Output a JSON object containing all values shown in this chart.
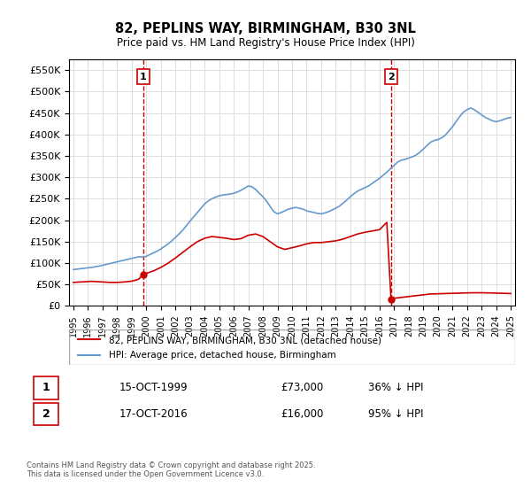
{
  "title": "82, PEPLINS WAY, BIRMINGHAM, B30 3NL",
  "subtitle": "Price paid vs. HM Land Registry's House Price Index (HPI)",
  "legend_property": "82, PEPLINS WAY, BIRMINGHAM, B30 3NL (detached house)",
  "legend_hpi": "HPI: Average price, detached house, Birmingham",
  "footnote": "Contains HM Land Registry data © Crown copyright and database right 2025.\nThis data is licensed under the Open Government Licence v3.0.",
  "sale1_label": "1",
  "sale1_date": "15-OCT-1999",
  "sale1_price": "£73,000",
  "sale1_hpi": "36% ↓ HPI",
  "sale2_label": "2",
  "sale2_date": "17-OCT-2016",
  "sale2_price": "£16,000",
  "sale2_hpi": "95% ↓ HPI",
  "property_color": "#cc0000",
  "hpi_color": "#6699cc",
  "vline_color": "#cc0000",
  "marker_box_color": "#cc0000",
  "background_color": "#ffffff",
  "grid_color": "#dddddd",
  "ylim": [
    0,
    575000
  ],
  "yticks": [
    0,
    50000,
    100000,
    150000,
    200000,
    250000,
    300000,
    350000,
    400000,
    450000,
    500000,
    550000
  ],
  "sale1_year": 1999.79,
  "sale2_year": 2016.79,
  "hpi_years": [
    1995,
    1995.25,
    1995.5,
    1995.75,
    1996,
    1996.25,
    1996.5,
    1996.75,
    1997,
    1997.25,
    1997.5,
    1997.75,
    1998,
    1998.25,
    1998.5,
    1998.75,
    1999,
    1999.25,
    1999.5,
    1999.75,
    2000,
    2000.25,
    2000.5,
    2000.75,
    2001,
    2001.25,
    2001.5,
    2001.75,
    2002,
    2002.25,
    2002.5,
    2002.75,
    2003,
    2003.25,
    2003.5,
    2003.75,
    2004,
    2004.25,
    2004.5,
    2004.75,
    2005,
    2005.25,
    2005.5,
    2005.75,
    2006,
    2006.25,
    2006.5,
    2006.75,
    2007,
    2007.25,
    2007.5,
    2007.75,
    2008,
    2008.25,
    2008.5,
    2008.75,
    2009,
    2009.25,
    2009.5,
    2009.75,
    2010,
    2010.25,
    2010.5,
    2010.75,
    2011,
    2011.25,
    2011.5,
    2011.75,
    2012,
    2012.25,
    2012.5,
    2012.75,
    2013,
    2013.25,
    2013.5,
    2013.75,
    2014,
    2014.25,
    2014.5,
    2014.75,
    2015,
    2015.25,
    2015.5,
    2015.75,
    2016,
    2016.25,
    2016.5,
    2016.75,
    2017,
    2017.25,
    2017.5,
    2017.75,
    2018,
    2018.25,
    2018.5,
    2018.75,
    2019,
    2019.25,
    2019.5,
    2019.75,
    2020,
    2020.25,
    2020.5,
    2020.75,
    2021,
    2021.25,
    2021.5,
    2021.75,
    2022,
    2022.25,
    2022.5,
    2022.75,
    2023,
    2023.25,
    2023.5,
    2023.75,
    2024,
    2024.25,
    2024.5,
    2024.75,
    2025
  ],
  "hpi_values": [
    85000,
    86000,
    87000,
    88000,
    89000,
    90000,
    91500,
    93000,
    95000,
    97000,
    99000,
    101000,
    103000,
    105000,
    107000,
    109000,
    111000,
    113000,
    115000,
    114000,
    116000,
    120000,
    124000,
    128000,
    133000,
    139000,
    145000,
    152000,
    160000,
    168000,
    177000,
    187000,
    198000,
    208000,
    218000,
    228000,
    238000,
    245000,
    250000,
    254000,
    257000,
    259000,
    260000,
    261000,
    263000,
    266000,
    270000,
    275000,
    280000,
    278000,
    272000,
    263000,
    255000,
    245000,
    232000,
    220000,
    215000,
    218000,
    222000,
    226000,
    228000,
    230000,
    228000,
    226000,
    222000,
    220000,
    218000,
    216000,
    215000,
    217000,
    220000,
    224000,
    228000,
    233000,
    240000,
    247000,
    255000,
    262000,
    268000,
    272000,
    276000,
    280000,
    286000,
    292000,
    298000,
    305000,
    312000,
    320000,
    328000,
    336000,
    340000,
    342000,
    345000,
    348000,
    352000,
    358000,
    366000,
    374000,
    382000,
    386000,
    388000,
    392000,
    398000,
    408000,
    418000,
    430000,
    442000,
    452000,
    458000,
    462000,
    458000,
    452000,
    446000,
    440000,
    436000,
    432000,
    430000,
    432000,
    435000,
    438000,
    440000
  ],
  "prop_years": [
    1995,
    1995.25,
    1995.5,
    1995.75,
    1996,
    1996.25,
    1996.5,
    1996.75,
    1997,
    1997.25,
    1997.5,
    1997.75,
    1998,
    1998.25,
    1998.5,
    1998.75,
    1999,
    1999.25,
    1999.5,
    1999.75,
    2000,
    2000.5,
    2001,
    2001.5,
    2002,
    2002.5,
    2003,
    2003.5,
    2004,
    2004.5,
    2005,
    2005.5,
    2006,
    2006.5,
    2007,
    2007.5,
    2008,
    2008.5,
    2009,
    2009.5,
    2010,
    2010.5,
    2011,
    2011.5,
    2012,
    2012.5,
    2013,
    2013.5,
    2014,
    2014.5,
    2015,
    2015.5,
    2016,
    2016.5,
    2016.79,
    2017,
    2017.5,
    2018,
    2018.5,
    2019,
    2019.5,
    2020,
    2020.5,
    2021,
    2021.5,
    2022,
    2022.5,
    2023,
    2023.5,
    2024,
    2024.5,
    2025
  ],
  "prop_values": [
    55000,
    55500,
    56000,
    56500,
    57000,
    57500,
    57000,
    56500,
    56000,
    55500,
    55000,
    55000,
    55000,
    55500,
    56000,
    57000,
    58000,
    60000,
    63000,
    73000,
    76000,
    82000,
    90000,
    100000,
    112000,
    125000,
    138000,
    150000,
    158000,
    162000,
    160000,
    158000,
    155000,
    157000,
    165000,
    168000,
    162000,
    150000,
    138000,
    132000,
    136000,
    140000,
    145000,
    148000,
    148000,
    150000,
    152000,
    156000,
    162000,
    168000,
    172000,
    175000,
    178000,
    195000,
    16000,
    18000,
    20000,
    22000,
    24000,
    26000,
    28000,
    28500,
    29000,
    29500,
    30000,
    30500,
    30800,
    30800,
    30500,
    30000,
    29500,
    29000
  ],
  "xtick_years": [
    1995,
    1996,
    1997,
    1998,
    1999,
    2000,
    2001,
    2002,
    2003,
    2004,
    2005,
    2006,
    2007,
    2008,
    2009,
    2010,
    2011,
    2012,
    2013,
    2014,
    2015,
    2016,
    2017,
    2018,
    2019,
    2020,
    2021,
    2022,
    2023,
    2024,
    2025
  ]
}
